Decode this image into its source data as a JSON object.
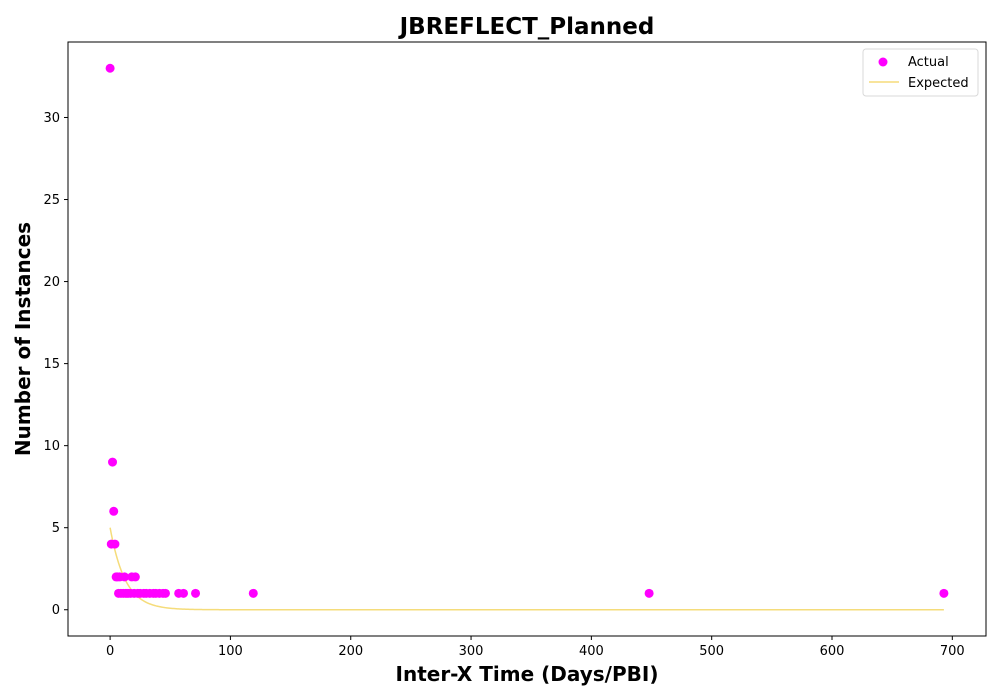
{
  "chart_data": {
    "type": "scatter",
    "title": "JBREFLECT_Planned",
    "xlabel": "Inter-X Time (Days/PBI)",
    "ylabel": "Number of Instances",
    "xlim": [
      -35,
      728
    ],
    "ylim": [
      -1.6,
      34.6
    ],
    "xticks": [
      0,
      100,
      200,
      300,
      400,
      500,
      600,
      700
    ],
    "yticks": [
      0,
      5,
      10,
      15,
      20,
      25,
      30
    ],
    "grid": false,
    "legend_position": "top-right",
    "colors": {
      "actual": "#ff00ff",
      "expected": "#f5dc7a"
    },
    "series": [
      {
        "name": "Actual",
        "kind": "scatter",
        "points": [
          [
            0,
            33
          ],
          [
            1,
            4
          ],
          [
            2,
            9
          ],
          [
            3,
            6
          ],
          [
            4,
            4
          ],
          [
            5,
            2
          ],
          [
            6,
            2
          ],
          [
            7,
            1
          ],
          [
            8,
            2
          ],
          [
            9,
            1
          ],
          [
            11,
            1
          ],
          [
            12,
            2
          ],
          [
            13,
            1
          ],
          [
            15,
            1
          ],
          [
            17,
            1
          ],
          [
            18,
            2
          ],
          [
            20,
            1
          ],
          [
            21,
            2
          ],
          [
            23,
            1
          ],
          [
            25,
            1
          ],
          [
            28,
            1
          ],
          [
            30,
            1
          ],
          [
            33,
            1
          ],
          [
            36,
            1
          ],
          [
            38,
            1
          ],
          [
            41,
            1
          ],
          [
            44,
            1
          ],
          [
            46,
            1
          ],
          [
            57,
            1
          ],
          [
            61,
            1
          ],
          [
            71,
            1
          ],
          [
            119,
            1
          ],
          [
            448,
            1
          ],
          [
            693,
            1
          ]
        ]
      },
      {
        "name": "Expected",
        "kind": "line",
        "model": "exponential",
        "amplitude": 5,
        "rate": 0.08,
        "x_range": [
          0,
          693
        ]
      }
    ]
  }
}
